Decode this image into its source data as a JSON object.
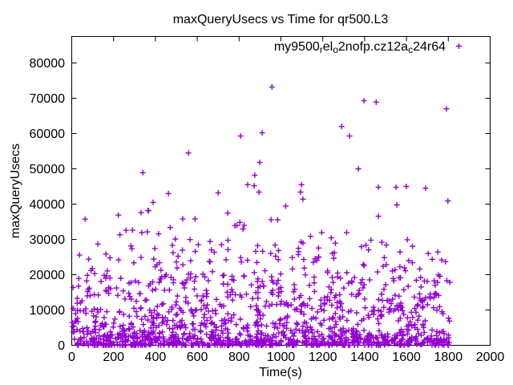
{
  "window": {
    "background": "#ffffff"
  },
  "chart_data": {
    "type": "scatter",
    "title": "maxQueryUsecs vs Time for qr500.L3",
    "xlabel": "Time(s)",
    "ylabel": "maxQueryUsecs",
    "x_range": [
      0,
      2000
    ],
    "y_range": [
      0,
      87500
    ],
    "x_ticks": [
      0,
      200,
      400,
      600,
      800,
      1000,
      1200,
      1400,
      1600,
      1800,
      2000
    ],
    "y_ticks": [
      0,
      10000,
      20000,
      30000,
      40000,
      50000,
      60000,
      70000,
      80000
    ],
    "grid": false,
    "legend_position": "top-right-inside",
    "series": [
      {
        "name": "my9500_rel_o2nofp.cz12a_c24r64",
        "name_segments": [
          {
            "text": "my9500"
          },
          {
            "text": "r",
            "subscript": true
          },
          {
            "text": "el"
          },
          {
            "text": "o",
            "subscript": true
          },
          {
            "text": "2nofp.cz12a"
          },
          {
            "text": "c",
            "subscript": true
          },
          {
            "text": "24r64"
          }
        ],
        "marker": "plus",
        "color": "#9400D3",
        "outlier_points": [
          [
            957,
            73200
          ],
          [
            1397,
            69300
          ],
          [
            1455,
            68900
          ],
          [
            1791,
            67000
          ],
          [
            1290,
            62000
          ],
          [
            910,
            60200
          ],
          [
            807,
            59300
          ],
          [
            1328,
            59300
          ],
          [
            558,
            54500
          ],
          [
            899,
            51800
          ],
          [
            1370,
            50000
          ],
          [
            340,
            48900
          ],
          [
            875,
            48200
          ],
          [
            1098,
            45500
          ],
          [
            841,
            45500
          ],
          [
            872,
            45200
          ],
          [
            1466,
            44800
          ],
          [
            1550,
            44800
          ],
          [
            1599,
            45000
          ],
          [
            1691,
            44500
          ],
          [
            700,
            43200
          ],
          [
            462,
            43000
          ],
          [
            895,
            43400
          ],
          [
            1094,
            43400
          ],
          [
            1105,
            41400
          ],
          [
            1798,
            40900
          ],
          [
            389,
            40500
          ]
        ],
        "scatter_profile": {
          "points_estimated": true,
          "seed": 1337,
          "t_min": 2,
          "t_max": 1808,
          "strata": [
            {
              "count": 30,
              "v_min": 30000,
              "v_max": 40200,
              "bias": 1.0
            },
            {
              "count": 110,
              "v_min": 20000,
              "v_max": 30000,
              "bias": 1.0
            },
            {
              "count": 300,
              "v_min": 10000,
              "v_max": 20000,
              "bias": 1.1
            },
            {
              "count": 320,
              "v_min": 3500,
              "v_max": 10000,
              "bias": 1.1
            },
            {
              "count": 650,
              "v_min": 0,
              "v_max": 3500,
              "bias": 1.6
            }
          ]
        }
      }
    ]
  }
}
